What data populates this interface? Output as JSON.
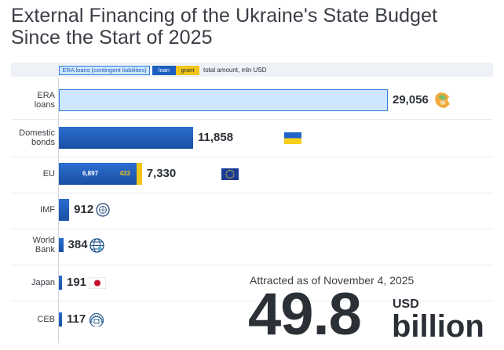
{
  "title": {
    "line1": "External Financing of the Ukraine's State Budget",
    "line2": "Since the Start of 2025"
  },
  "legend": {
    "era_label": "ERA loans (contingent liabilities)",
    "loan_label": "loan",
    "grant_label": "grant",
    "total_label": "total amount, mln USD"
  },
  "chart_data": {
    "type": "bar",
    "orientation": "horizontal",
    "categories": [
      "ERA loans",
      "Domestic bonds",
      "EU",
      "IMF",
      "World Bank",
      "Japan",
      "CEB"
    ],
    "category_lines": [
      [
        "ERA",
        "loans"
      ],
      [
        "Domestic",
        "bonds"
      ],
      [
        "EU"
      ],
      [
        "IMF"
      ],
      [
        "World",
        "Bank"
      ],
      [
        "Japan"
      ],
      [
        "CEB"
      ]
    ],
    "series": [
      {
        "name": "ERA loans (contingent liabilities)",
        "values": [
          29056,
          null,
          null,
          null,
          null,
          null,
          null
        ]
      },
      {
        "name": "loan",
        "values": [
          null,
          11858,
          6897,
          912,
          384,
          191,
          117
        ]
      },
      {
        "name": "grant",
        "values": [
          null,
          null,
          433,
          null,
          null,
          null,
          null
        ]
      }
    ],
    "totals": [
      29056,
      11858,
      7330,
      912,
      384,
      191,
      117
    ],
    "total_labels": [
      "29,056",
      "11,858",
      "7,330",
      "912",
      "384",
      "191",
      "117"
    ],
    "segment_labels": {
      "eu_loan": "6,897",
      "eu_grant": "433"
    },
    "icons": [
      "ukraine-map-icon",
      "ukraine-flag-icon",
      "eu-flag-icon",
      "imf-seal-icon",
      "world-bank-globe-icon",
      "japan-flag-icon",
      "ceb-logo-icon"
    ],
    "colors": {
      "era_fill": "#cfe6ff",
      "era_border": "#2f7de1",
      "loan": "#1d5fbf",
      "grant": "#f0c418"
    },
    "xlim": [
      0,
      29056
    ],
    "grid": false,
    "legend_position": "top"
  },
  "summary": {
    "attracted_label": "Attracted as of November 4, 2025",
    "amount": "49.8",
    "unit_top": "USD",
    "unit_bottom": "billion"
  }
}
